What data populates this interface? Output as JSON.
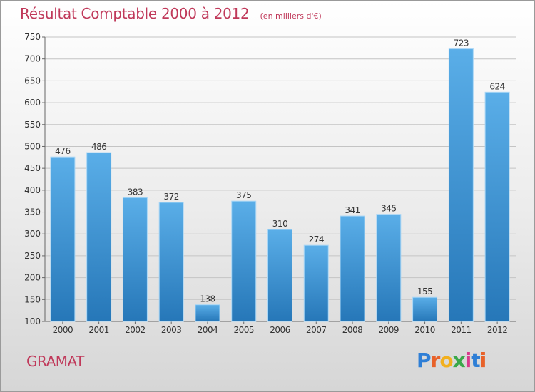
{
  "header": {
    "title": "Résultat Comptable 2000 à 2012",
    "subtitle": "(en milliers d'€)"
  },
  "footer": {
    "city": "GRAMAT",
    "logo_letters": [
      "P",
      "r",
      "o",
      "x",
      "i",
      "t",
      "i"
    ],
    "logo_colors": [
      "#2f7fd6",
      "#e8622a",
      "#f2b01e",
      "#3aa84a",
      "#d93a8c",
      "#2f7fd6",
      "#e8622a"
    ]
  },
  "colors": {
    "bar_top": "#5aaee8",
    "bar_bottom": "#2677b8",
    "bar_edge": "#a9d6f5",
    "grid": "#c4c4c4",
    "title": "#c0395a"
  },
  "chart_data": {
    "type": "bar",
    "title": "Résultat Comptable 2000 à 2012",
    "subtitle": "(en milliers d'€)",
    "xlabel": "",
    "ylabel": "",
    "categories": [
      "2000",
      "2001",
      "2002",
      "2003",
      "2004",
      "2005",
      "2006",
      "2007",
      "2008",
      "2009",
      "2010",
      "2011",
      "2012"
    ],
    "values": [
      476,
      486,
      383,
      372,
      138,
      375,
      310,
      274,
      341,
      345,
      155,
      723,
      624
    ],
    "data_labels": [
      "476",
      "486",
      "383",
      "372",
      "138",
      "375",
      "310",
      "274",
      "341",
      "345",
      "155",
      "723",
      "624"
    ],
    "ylim": [
      100,
      750
    ],
    "yticks": [
      100,
      150,
      200,
      250,
      300,
      350,
      400,
      450,
      500,
      550,
      600,
      650,
      700,
      750
    ],
    "ytick_labels": [
      "100",
      "150",
      "200",
      "250",
      "300",
      "350",
      "400",
      "450",
      "500",
      "550",
      "600",
      "650",
      "700",
      "750"
    ],
    "grid": true,
    "legend": "none"
  }
}
